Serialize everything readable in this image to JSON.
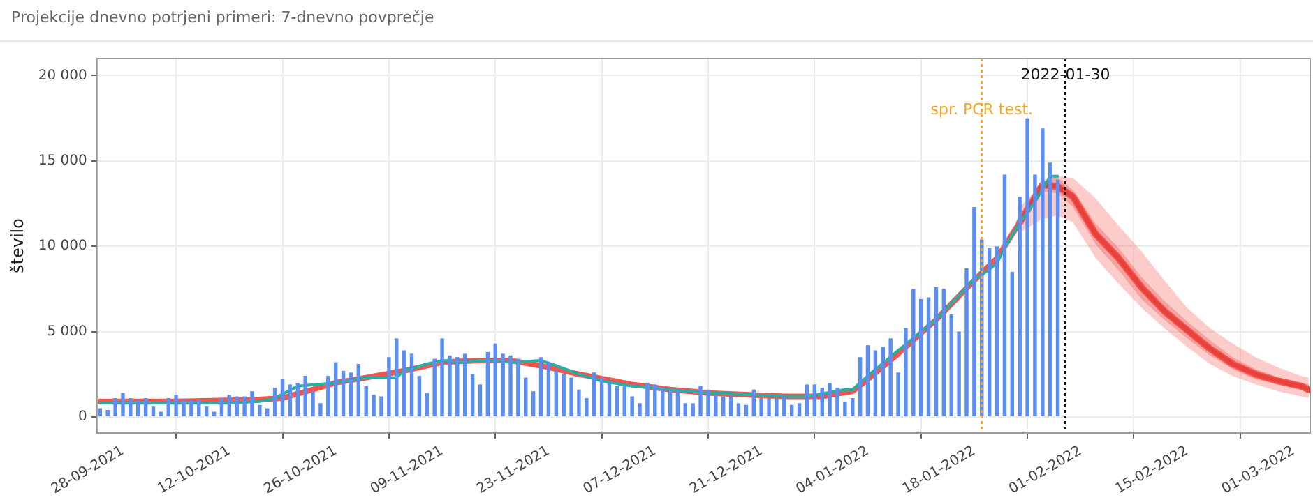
{
  "chart_data": {
    "type": "bar",
    "title": "Projekcije dnevno potrjeni primeri: 7-dnevno povprečje",
    "ylabel": "število",
    "xlim": [
      "2021-09-24T14:00",
      "2022-03-03T05:00"
    ],
    "xticks": [
      {
        "value": "2021-09-28",
        "label": "28-09-2021"
      },
      {
        "value": "2021-10-12",
        "label": "12-10-2021"
      },
      {
        "value": "2021-10-26",
        "label": "26-10-2021"
      },
      {
        "value": "2021-11-09",
        "label": "09-11-2021"
      },
      {
        "value": "2021-11-23",
        "label": "23-11-2021"
      },
      {
        "value": "2021-12-07",
        "label": "07-12-2021"
      },
      {
        "value": "2021-12-21",
        "label": "21-12-2021"
      },
      {
        "value": "2022-01-04",
        "label": "04-01-2022"
      },
      {
        "value": "2022-01-18",
        "label": "18-01-2022"
      },
      {
        "value": "2022-02-01",
        "label": "01-02-2022"
      },
      {
        "value": "2022-02-15",
        "label": "15-02-2022"
      },
      {
        "value": "2022-03-01",
        "label": "01-03-2022"
      }
    ],
    "ylim": [
      -950,
      21000
    ],
    "yticks": [
      0,
      {
        "value": 5000,
        "label": "5 000"
      },
      {
        "value": 10000,
        "label": "10 000"
      },
      {
        "value": 15000,
        "label": "15 000"
      },
      {
        "value": 20000,
        "label": "20 000"
      }
    ],
    "grid": true,
    "marker": "none",
    "series": [
      {
        "color": "#5a8ef2",
        "x": [
          "2021-09-25",
          "2021-09-26",
          "2021-09-27",
          "2021-09-28",
          "2021-09-29",
          "2021-09-30",
          "2021-10-01",
          "2021-10-02",
          "2021-10-03",
          "2021-10-04",
          "2021-10-05",
          "2021-10-06",
          "2021-10-07",
          "2021-10-08",
          "2021-10-09",
          "2021-10-10",
          "2021-10-11",
          "2021-10-12",
          "2021-10-13",
          "2021-10-14",
          "2021-10-15",
          "2021-10-16",
          "2021-10-17",
          "2021-10-18",
          "2021-10-19",
          "2021-10-20",
          "2021-10-21",
          "2021-10-22",
          "2021-10-23",
          "2021-10-24",
          "2021-10-25",
          "2021-10-26",
          "2021-10-27",
          "2021-10-28",
          "2021-10-29",
          "2021-10-30",
          "2021-10-31",
          "2021-11-01",
          "2021-11-02",
          "2021-11-03",
          "2021-11-04",
          "2021-11-05",
          "2021-11-06",
          "2021-11-07",
          "2021-11-08",
          "2021-11-09",
          "2021-11-10",
          "2021-11-11",
          "2021-11-12",
          "2021-11-13",
          "2021-11-14",
          "2021-11-15",
          "2021-11-16",
          "2021-11-17",
          "2021-11-18",
          "2021-11-19",
          "2021-11-20",
          "2021-11-21",
          "2021-11-22",
          "2021-11-23",
          "2021-11-24",
          "2021-11-25",
          "2021-11-26",
          "2021-11-27",
          "2021-11-28",
          "2021-11-29",
          "2021-11-30",
          "2021-12-01",
          "2021-12-02",
          "2021-12-03",
          "2021-12-04",
          "2021-12-05",
          "2021-12-06",
          "2021-12-07",
          "2021-12-08",
          "2021-12-09",
          "2021-12-10",
          "2021-12-11",
          "2021-12-12",
          "2021-12-13",
          "2021-12-14",
          "2021-12-15",
          "2021-12-16",
          "2021-12-17",
          "2021-12-18",
          "2021-12-19",
          "2021-12-20",
          "2021-12-21",
          "2021-12-22",
          "2021-12-23",
          "2021-12-24",
          "2021-12-25",
          "2021-12-26",
          "2021-12-27",
          "2021-12-28",
          "2021-12-29",
          "2021-12-30",
          "2021-12-31",
          "2022-01-01",
          "2022-01-02",
          "2022-01-03",
          "2022-01-04",
          "2022-01-05",
          "2022-01-06",
          "2022-01-07",
          "2022-01-08",
          "2022-01-09",
          "2022-01-10",
          "2022-01-11",
          "2022-01-12",
          "2022-01-13",
          "2022-01-14",
          "2022-01-15",
          "2022-01-16",
          "2022-01-17",
          "2022-01-18",
          "2022-01-19",
          "2022-01-20",
          "2022-01-21",
          "2022-01-22",
          "2022-01-23",
          "2022-01-24",
          "2022-01-25",
          "2022-01-26",
          "2022-01-27",
          "2022-01-28",
          "2022-01-29"
        ],
        "values": [
          500,
          400,
          1100,
          1400,
          1100,
          1000,
          1100,
          600,
          300,
          1100,
          1300,
          1000,
          1000,
          1000,
          600,
          300,
          1100,
          1300,
          1200,
          1200,
          1500,
          700,
          500,
          1700,
          2200,
          1900,
          2000,
          2400,
          1500,
          800,
          2400,
          3200,
          2700,
          2600,
          3100,
          1800,
          1300,
          1200,
          3500,
          4600,
          3900,
          3700,
          2400,
          1400,
          3400,
          4600,
          3600,
          3500,
          3700,
          2500,
          1900,
          3800,
          4300,
          3700,
          3600,
          3400,
          2300,
          1500,
          3500,
          3200,
          2700,
          2500,
          2300,
          1600,
          1100,
          2600,
          2300,
          2000,
          1800,
          1800,
          1200,
          800,
          2000,
          1900,
          1700,
          1600,
          1600,
          800,
          800,
          1800,
          1600,
          1300,
          1200,
          1200,
          800,
          700,
          1600,
          1100,
          1100,
          1100,
          1200,
          700,
          800,
          1900,
          1900,
          1700,
          2000,
          1700,
          900,
          1100,
          3500,
          4200,
          3900,
          4100,
          4600,
          2600,
          5200,
          7500,
          6900,
          7000,
          7600,
          7500,
          6000,
          5000,
          8700,
          12300,
          10400,
          9900,
          10000,
          14200,
          8500,
          12900,
          17500,
          14200,
          16900,
          14900,
          13900
        ]
      },
      {
        "type": "line",
        "color": "#f2554c",
        "x": [
          "2021-09-25",
          "2021-10-05",
          "2021-10-15",
          "2021-10-19",
          "2021-10-23",
          "2021-10-26",
          "2021-10-30",
          "2021-11-04",
          "2021-11-09",
          "2021-11-14",
          "2021-11-18",
          "2021-11-22",
          "2021-11-27",
          "2021-12-04",
          "2021-12-09",
          "2021-12-14",
          "2021-12-24",
          "2021-12-29",
          "2022-01-02",
          "2022-01-04",
          "2022-01-08",
          "2022-01-13",
          "2022-01-18",
          "2022-01-21",
          "2022-01-24"
        ],
        "values": [
          900,
          900,
          1000,
          1100,
          1600,
          2000,
          2300,
          2700,
          3200,
          3300,
          3300,
          3000,
          2500,
          1900,
          1600,
          1400,
          1200,
          1200,
          1500,
          2200,
          3700,
          5700,
          8000,
          9300,
          11400
        ]
      },
      {
        "type": "line",
        "color": "#f2554c",
        "x": [
          "2022-01-24",
          "2022-01-27",
          "2022-01-29",
          "2022-01-31",
          "2022-02-03",
          "2022-02-06",
          "2022-02-09",
          "2022-02-12",
          "2022-02-15",
          "2022-02-18",
          "2022-02-21",
          "2022-02-24",
          "2022-02-27",
          "2022-03-02",
          "2022-03-03"
        ],
        "values": [
          11400,
          13600,
          13500,
          12900,
          10700,
          9300,
          7600,
          6200,
          5100,
          4000,
          3100,
          2500,
          2100,
          1800,
          1600
        ],
        "lower": [
          10800,
          11600,
          11800,
          11400,
          9300,
          7800,
          6400,
          5200,
          4100,
          3100,
          2400,
          1900,
          1500,
          1200,
          1100
        ],
        "upper": [
          12300,
          13700,
          14100,
          14000,
          12800,
          11200,
          9700,
          8000,
          6400,
          5200,
          4300,
          3500,
          2900,
          2400,
          2300
        ]
      },
      {
        "type": "line",
        "color": "#e8403a",
        "x": [
          "2022-01-24",
          "2022-01-27",
          "2022-01-29",
          "2022-01-31",
          "2022-02-03",
          "2022-02-06",
          "2022-02-09",
          "2022-02-12",
          "2022-02-15",
          "2022-02-18",
          "2022-02-21",
          "2022-02-24",
          "2022-02-27",
          "2022-03-02",
          "2022-03-03"
        ],
        "values": [
          11400,
          13600,
          13500,
          12900,
          10700,
          9300,
          7600,
          6200,
          5100,
          4000,
          3100,
          2500,
          2100,
          1800,
          1600
        ],
        "lower": [
          11100,
          13200,
          13100,
          12300,
          10100,
          8600,
          6900,
          5700,
          4600,
          3600,
          2800,
          2200,
          1900,
          1600,
          1500
        ],
        "upper": [
          11800,
          13900,
          14000,
          13300,
          11300,
          9900,
          8200,
          6800,
          5600,
          4500,
          3500,
          2800,
          2300,
          2000,
          1900
        ]
      },
      {
        "type": "line",
        "color": "#24b0a6",
        "x": [
          "2021-09-25",
          "2021-10-05",
          "2021-10-12",
          "2021-10-16",
          "2021-10-18",
          "2021-10-21",
          "2021-10-26",
          "2021-10-30",
          "2021-11-02",
          "2021-11-03",
          "2021-11-04",
          "2021-11-07",
          "2021-11-09",
          "2021-11-11",
          "2021-11-15",
          "2021-11-18",
          "2021-11-22",
          "2021-11-24",
          "2021-11-27",
          "2021-11-30",
          "2021-12-04",
          "2021-12-07",
          "2021-12-11",
          "2021-12-15",
          "2021-12-24",
          "2021-12-27",
          "2022-01-01",
          "2022-01-02",
          "2022-01-04",
          "2022-01-08",
          "2022-01-13",
          "2022-01-17",
          "2022-01-18",
          "2022-01-19",
          "2022-01-21",
          "2022-01-22",
          "2022-01-24",
          "2022-01-26",
          "2022-01-28",
          "2022-01-29"
        ],
        "values": [
          800,
          800,
          800,
          900,
          1100,
          1800,
          2000,
          2300,
          2300,
          2300,
          2700,
          3100,
          3300,
          3200,
          3300,
          3200,
          3300,
          3000,
          2500,
          2100,
          1800,
          1700,
          1500,
          1400,
          1200,
          1200,
          1600,
          1600,
          2400,
          3900,
          5700,
          7600,
          8100,
          8300,
          9000,
          9900,
          11400,
          12600,
          14100,
          14100
        ]
      }
    ],
    "ref_lines": [
      {
        "axis": "x",
        "value": "2022-01-19",
        "label": "spr. PCR test.",
        "color": "#f5a623",
        "line_style": "dotted"
      },
      {
        "axis": "x",
        "value": "2022-01-30",
        "label": "2022-01-30",
        "color": "#111111",
        "line_style": "dotted"
      }
    ]
  }
}
